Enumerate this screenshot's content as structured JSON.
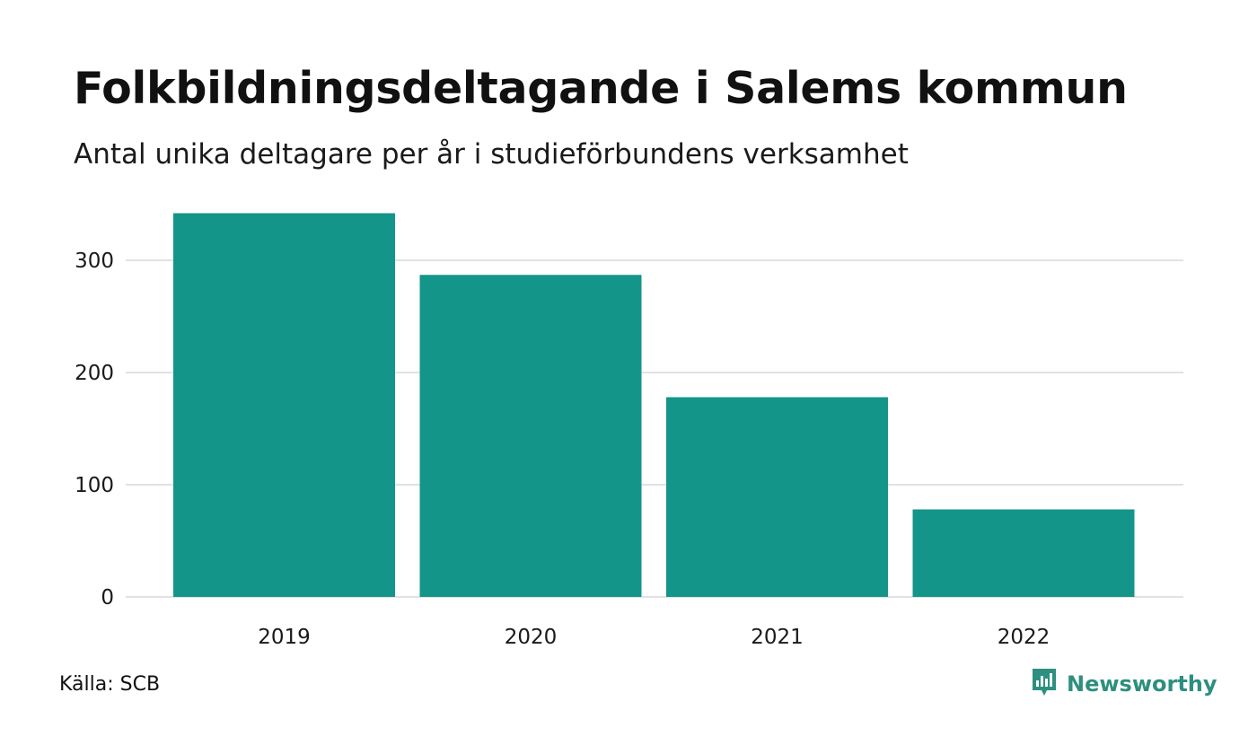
{
  "title": "Folkbildningsdeltagande i Salems kommun",
  "subtitle": "Antal unika deltagare per år i studieförbundens verksamhet",
  "source": "Källa: SCB",
  "brand": {
    "name": "Newsworthy",
    "icon": "bar-chart-speech-bubble-icon",
    "color": "#2d8f7f"
  },
  "colors": {
    "bar": "#14958a",
    "grid": "#e2e2e2",
    "text": "#111111"
  },
  "chart_data": {
    "type": "bar",
    "categories": [
      "2019",
      "2020",
      "2021",
      "2022"
    ],
    "values": [
      342,
      287,
      178,
      78
    ],
    "ylim": [
      0,
      360
    ],
    "yticks": [
      0,
      100,
      200,
      300
    ],
    "grid": true,
    "xlabel": "",
    "ylabel": ""
  }
}
